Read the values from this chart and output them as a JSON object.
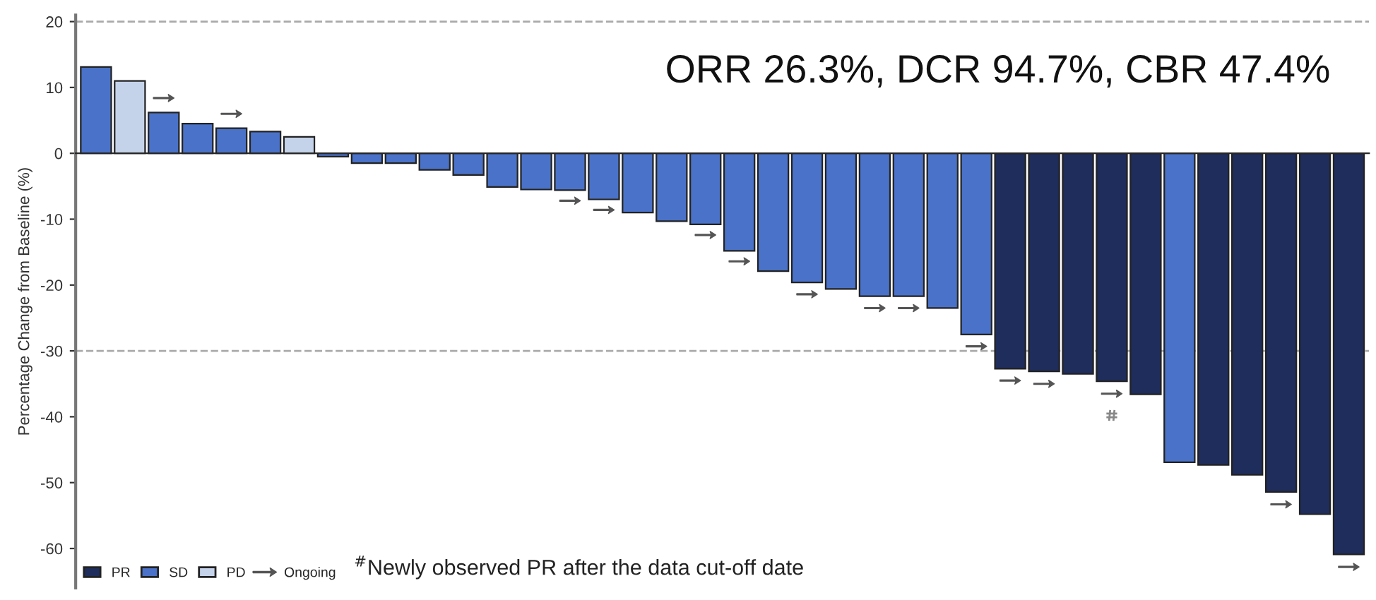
{
  "chart_data": {
    "type": "bar",
    "ylabel": "Percentage Change from Baseline (%)",
    "categories": [
      null,
      null,
      null,
      null,
      null,
      null,
      null,
      null,
      null,
      null,
      null,
      null,
      null,
      null,
      null,
      null,
      null,
      null,
      null,
      null,
      null,
      null,
      null,
      null,
      null,
      null,
      null,
      null,
      null,
      null,
      null,
      null,
      null,
      null,
      null,
      null,
      null,
      null
    ],
    "series": [
      {
        "name": "PR",
        "color": "#1f2d5c",
        "values": [
          null,
          null,
          null,
          null,
          null,
          null,
          null,
          null,
          null,
          null,
          null,
          null,
          null,
          null,
          null,
          null,
          null,
          null,
          null,
          null,
          null,
          null,
          null,
          null,
          null,
          null,
          null,
          -32.7,
          -33.1,
          -33.5,
          -34.6,
          -36.6,
          null,
          -47.3,
          -48.8,
          -51.4,
          -54.8,
          -60.9
        ]
      },
      {
        "name": "SD",
        "color": "#4a72c8",
        "values": [
          13.1,
          null,
          6.2,
          4.5,
          3.8,
          3.3,
          null,
          -0.5,
          -1.5,
          -1.5,
          -2.5,
          -3.3,
          -5.1,
          -5.5,
          -5.6,
          -7.0,
          -9.0,
          -10.3,
          -10.8,
          -14.8,
          -17.9,
          -19.6,
          -20.6,
          -21.7,
          -21.7,
          -23.5,
          -27.5,
          null,
          null,
          null,
          null,
          null,
          -46.9,
          null,
          null,
          null,
          null,
          null
        ]
      },
      {
        "name": "PD",
        "color": "#c5d3ea",
        "values": [
          null,
          11.0,
          null,
          null,
          null,
          null,
          2.5,
          null,
          null,
          null,
          null,
          null,
          null,
          null,
          null,
          null,
          null,
          null,
          null,
          null,
          null,
          null,
          null,
          null,
          null,
          null,
          null,
          null,
          null,
          null,
          null,
          null,
          null,
          null,
          null,
          null,
          null,
          null
        ]
      },
      {
        "name": "Ongoing",
        "type": "scatter",
        "color": "#555555",
        "values": [
          null,
          null,
          8.4,
          null,
          6.0,
          null,
          null,
          null,
          null,
          null,
          null,
          null,
          null,
          null,
          -7.2,
          -8.6,
          null,
          null,
          -12.4,
          -16.4,
          null,
          -21.4,
          null,
          -23.5,
          -23.5,
          null,
          -29.3,
          -34.5,
          -35.0,
          null,
          -36.5,
          null,
          null,
          null,
          null,
          -53.3,
          null,
          -62.8
        ]
      },
      {
        "type": "scatter",
        "color": "#888888",
        "values": [
          null,
          null,
          null,
          null,
          null,
          null,
          null,
          null,
          null,
          null,
          null,
          null,
          null,
          null,
          null,
          null,
          null,
          null,
          null,
          null,
          null,
          null,
          null,
          null,
          null,
          null,
          null,
          null,
          null,
          null,
          -39.8,
          null,
          null,
          null,
          null,
          null,
          null,
          null
        ]
      }
    ],
    "ylim": [
      -66,
      21
    ],
    "yticks": [
      20,
      10,
      0,
      -10,
      -20,
      -30,
      -40,
      -50,
      -60
    ],
    "ref_lines": [
      {
        "axis": "y",
        "value": 20,
        "color": "#aaaaaa",
        "line_style": "dashed"
      },
      {
        "axis": "y",
        "value": -30,
        "color": "#aaaaaa",
        "line_style": "dashed"
      }
    ],
    "annotations": [
      "ORR 26.3%, DCR 94.7%, CBR 47.4%",
      "$^{#}$Newly observed PR after the data cut-off date"
    ],
    "legend": "bottom left",
    "grid": false
  }
}
